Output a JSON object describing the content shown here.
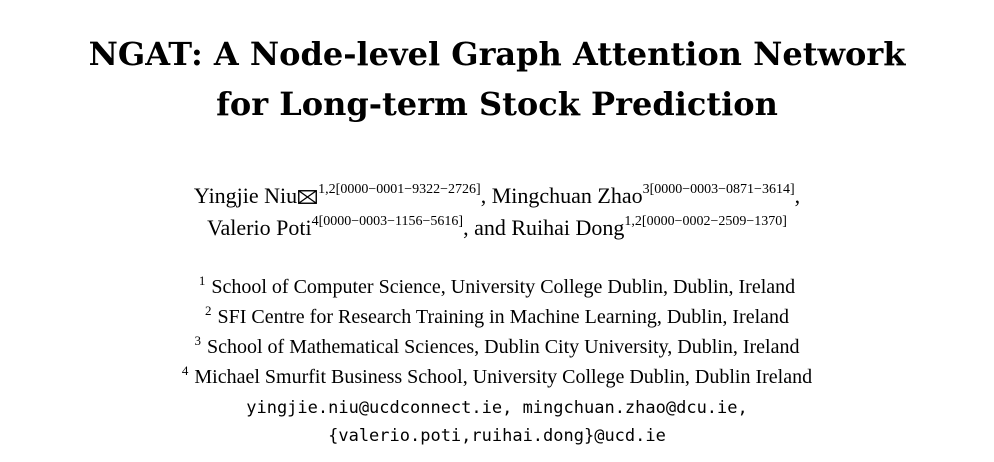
{
  "paper": {
    "title_line1": "NGAT: A Node-level Graph Attention Network",
    "title_line2": "for Long-term Stock Prediction",
    "authors": [
      {
        "name": "Yingjie Niu",
        "affil": "1,2",
        "orcid": "[0000−0001−9322−2726]",
        "corresponding_icon": "envelope-icon"
      },
      {
        "name": "Mingchuan Zhao",
        "affil": "3",
        "orcid": "[0000−0003−0871−3614]"
      },
      {
        "name": "Valerio Poti",
        "affil": "4",
        "orcid": "[0000−0003−1156−5616]"
      },
      {
        "name": "Ruihai Dong",
        "affil": "1,2",
        "orcid": "[0000−0002−2509−1370]"
      }
    ],
    "separators": {
      "comma": ",",
      "and": ", and "
    },
    "affiliations": [
      {
        "num": "1",
        "text": "School of Computer Science, University College Dublin, Dublin, Ireland"
      },
      {
        "num": "2",
        "text": "SFI Centre for Research Training in Machine Learning, Dublin, Ireland"
      },
      {
        "num": "3",
        "text": "School of Mathematical Sciences, Dublin City University, Dublin, Ireland"
      },
      {
        "num": "4",
        "text": "Michael Smurfit Business School, University College Dublin, Dublin Ireland"
      }
    ],
    "emails_line1": "yingjie.niu@ucdconnect.ie, mingchuan.zhao@dcu.ie,",
    "emails_line2": "{valerio.poti,ruihai.dong}@ucd.ie"
  }
}
